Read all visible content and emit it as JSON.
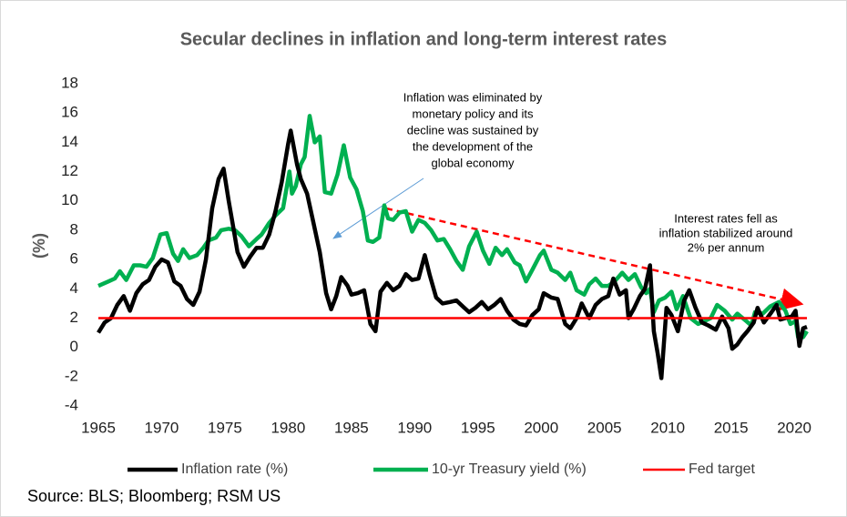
{
  "chart_data": {
    "type": "line",
    "title": "Secular declines in inflation and long-term interest rates",
    "y_label": "(%)",
    "source": "Source: BLS; Bloomberg; RSM US",
    "annotations": [
      [
        "Inflation was eliminated by",
        "monetary policy and its",
        "decline was sustained by",
        "the development of the",
        "global economy"
      ],
      [
        "Interest rates fell as",
        "inflation stabilized around",
        "2% per annum"
      ]
    ],
    "xlim": [
      1965,
      2021
    ],
    "xticks": [
      1965,
      1970,
      1975,
      1980,
      1985,
      1990,
      1995,
      2000,
      2005,
      2010,
      2015,
      2020
    ],
    "ylim": [
      -4,
      18
    ],
    "yticks": [
      -4,
      -2,
      0,
      2,
      4,
      6,
      8,
      10,
      12,
      14,
      16,
      18
    ],
    "grid": false,
    "series": [
      {
        "name": "Inflation rate (%)",
        "color": "#000000",
        "x": [
          1965,
          1965.5,
          1966,
          1966.5,
          1967,
          1967.5,
          1968,
          1968.5,
          1969,
          1969.5,
          1970,
          1970.5,
          1971,
          1971.5,
          1972,
          1972.5,
          1973,
          1973.5,
          1974,
          1974.5,
          1974.9,
          1975.3,
          1975.7,
          1976,
          1976.5,
          1977,
          1977.5,
          1978,
          1978.5,
          1979,
          1979.5,
          1980,
          1980.2,
          1980.7,
          1981,
          1981.5,
          1982,
          1982.5,
          1983,
          1983.4,
          1983.8,
          1984.2,
          1984.7,
          1985,
          1985.5,
          1986,
          1986.5,
          1986.9,
          1987.3,
          1987.8,
          1988.3,
          1988.8,
          1989.3,
          1989.8,
          1990.3,
          1990.8,
          1991.2,
          1991.7,
          1992.2,
          1992.8,
          1993.3,
          1993.8,
          1994.3,
          1994.8,
          1995.3,
          1995.8,
          1996.3,
          1996.8,
          1997.3,
          1997.8,
          1998.3,
          1998.8,
          1999.3,
          1999.8,
          2000.2,
          2000.8,
          2001.3,
          2001.9,
          2002.3,
          2002.8,
          2003.2,
          2003.8,
          2004.3,
          2004.8,
          2005.3,
          2005.7,
          2006.2,
          2006.7,
          2006.9,
          2007.3,
          2007.8,
          2008.2,
          2008.6,
          2008.9,
          2009.2,
          2009.5,
          2009.9,
          2010.3,
          2010.8,
          2011.3,
          2011.7,
          2012.2,
          2012.7,
          2013.2,
          2013.8,
          2014.3,
          2014.8,
          2015.1,
          2015.5,
          2015.9,
          2016.3,
          2016.8,
          2017.1,
          2017.6,
          2018.2,
          2018.6,
          2018.9,
          2019.3,
          2019.8,
          2020.1,
          2020.4,
          2020.7,
          2021
        ],
        "values": [
          1.0,
          1.7,
          2.0,
          2.9,
          3.5,
          2.5,
          3.7,
          4.3,
          4.6,
          5.5,
          6.0,
          5.8,
          4.5,
          4.2,
          3.3,
          2.9,
          3.8,
          6.0,
          9.5,
          11.5,
          12.2,
          10.0,
          8.0,
          6.5,
          5.5,
          6.2,
          6.8,
          6.8,
          7.7,
          9.3,
          11.3,
          13.9,
          14.8,
          12.5,
          11.5,
          10.5,
          8.5,
          6.5,
          3.7,
          2.6,
          3.5,
          4.8,
          4.2,
          3.6,
          3.7,
          3.9,
          1.6,
          1.1,
          3.8,
          4.4,
          3.9,
          4.2,
          5.0,
          4.6,
          4.7,
          6.3,
          4.9,
          3.4,
          3.0,
          3.1,
          3.2,
          2.8,
          2.4,
          2.7,
          3.1,
          2.6,
          2.9,
          3.3,
          2.5,
          1.9,
          1.6,
          1.5,
          2.2,
          2.6,
          3.7,
          3.4,
          3.3,
          1.6,
          1.3,
          2.0,
          3.0,
          2.0,
          2.9,
          3.3,
          3.5,
          4.7,
          3.6,
          3.9,
          2.0,
          2.6,
          3.5,
          4.0,
          5.6,
          1.1,
          -0.4,
          -2.1,
          2.7,
          2.2,
          1.1,
          3.2,
          3.9,
          2.7,
          1.7,
          1.5,
          1.2,
          2.1,
          1.3,
          -0.1,
          0.2,
          0.7,
          1.1,
          1.7,
          2.7,
          1.7,
          2.4,
          2.9,
          1.9,
          2.0,
          2.1,
          2.5,
          0.1,
          1.3,
          1.4
        ]
      },
      {
        "name": "10-yr Treasury  yield (%)",
        "color": "#00b050",
        "x": [
          1965,
          1965.8,
          1966.3,
          1966.7,
          1967.2,
          1967.8,
          1968.3,
          1968.8,
          1969.3,
          1969.9,
          1970.4,
          1970.9,
          1971.3,
          1971.7,
          1972.2,
          1972.8,
          1973.3,
          1973.7,
          1974.3,
          1974.7,
          1975.3,
          1975.8,
          1976.3,
          1976.9,
          1977.5,
          1977.9,
          1978.5,
          1979,
          1979.6,
          1980.1,
          1980.3,
          1980.6,
          1981,
          1981.3,
          1981.7,
          1982.1,
          1982.5,
          1982.9,
          1983.4,
          1983.9,
          1984.4,
          1984.9,
          1985.4,
          1985.9,
          1986.3,
          1986.7,
          1987.2,
          1987.6,
          1987.9,
          1988.3,
          1988.8,
          1989.3,
          1989.8,
          1990.3,
          1990.8,
          1991.3,
          1991.8,
          1992.3,
          1992.8,
          1993.3,
          1993.8,
          1994.3,
          1994.9,
          1995.4,
          1995.9,
          1996.4,
          1996.9,
          1997.3,
          1997.9,
          1998.3,
          1998.8,
          1999.3,
          1999.9,
          2000.2,
          2000.8,
          2001.3,
          2001.9,
          2002.3,
          2002.8,
          2003.4,
          2003.8,
          2004.3,
          2004.8,
          2005.3,
          2005.8,
          2006.4,
          2006.9,
          2007.4,
          2007.9,
          2008.3,
          2008.6,
          2008.9,
          2009.3,
          2009.8,
          2010.3,
          2010.7,
          2011.2,
          2011.8,
          2012.4,
          2012.9,
          2013.4,
          2013.9,
          2014.5,
          2015.1,
          2015.5,
          2016.2,
          2016.6,
          2016.9,
          2017.5,
          2018.1,
          2018.8,
          2019.3,
          2019.7,
          2020.1,
          2020.3,
          2020.7,
          2021
        ],
        "values": [
          4.2,
          4.5,
          4.7,
          5.2,
          4.6,
          5.6,
          5.6,
          5.5,
          6.1,
          7.7,
          7.8,
          6.4,
          5.9,
          6.7,
          6.1,
          6.3,
          6.8,
          7.3,
          7.5,
          8.0,
          8.1,
          8.0,
          7.6,
          6.9,
          7.4,
          7.7,
          8.5,
          9.0,
          9.5,
          12.0,
          10.5,
          11.0,
          12.5,
          13.0,
          15.8,
          14.0,
          14.4,
          10.6,
          10.5,
          11.8,
          13.8,
          11.6,
          10.8,
          9.3,
          7.3,
          7.2,
          7.5,
          9.7,
          8.8,
          8.7,
          9.2,
          9.3,
          7.9,
          8.7,
          8.5,
          8.0,
          7.3,
          7.4,
          6.7,
          5.9,
          5.3,
          6.9,
          7.9,
          6.6,
          5.7,
          6.8,
          6.3,
          6.7,
          5.8,
          5.6,
          4.5,
          5.3,
          6.3,
          6.6,
          5.3,
          5.1,
          4.6,
          5.1,
          3.9,
          3.6,
          4.3,
          4.7,
          4.2,
          4.2,
          4.5,
          5.1,
          4.6,
          5.0,
          4.1,
          3.7,
          4.0,
          2.4,
          3.2,
          3.4,
          3.8,
          2.6,
          3.5,
          2.0,
          1.6,
          1.8,
          2.0,
          2.9,
          2.5,
          1.9,
          2.3,
          1.8,
          1.5,
          2.4,
          2.3,
          2.8,
          3.1,
          2.5,
          1.6,
          1.8,
          0.7,
          0.7,
          1.1
        ]
      },
      {
        "name": "Fed target",
        "color": "#ff0000",
        "x": [
          1965,
          2021
        ],
        "values": [
          2,
          2
        ]
      }
    ]
  }
}
